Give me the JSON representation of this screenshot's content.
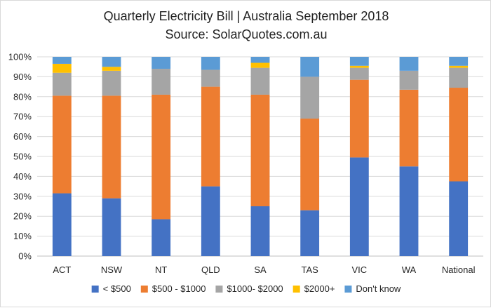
{
  "chart_data": {
    "type": "bar",
    "stacked": true,
    "title": "Quarterly  Electricity Bill | Australia September 2018",
    "subtitle": "Source: SolarQuotes.com.au",
    "xlabel": "",
    "ylabel": "",
    "ylim": [
      0,
      100
    ],
    "y_ticks": [
      "0%",
      "10%",
      "20%",
      "30%",
      "40%",
      "50%",
      "60%",
      "70%",
      "80%",
      "90%",
      "100%"
    ],
    "grid": true,
    "legend_position": "bottom",
    "categories": [
      "ACT",
      "NSW",
      "NT",
      "QLD",
      "SA",
      "TAS",
      "VIC",
      "WA",
      "National"
    ],
    "series": [
      {
        "name": "< $500",
        "color": "#4472C4",
        "values": [
          31.5,
          29,
          18.5,
          35,
          25,
          23,
          49.5,
          45,
          37.5
        ]
      },
      {
        "name": "$500 - $1000",
        "color": "#ED7D31",
        "values": [
          49,
          51.5,
          62.5,
          50,
          56,
          46,
          39,
          38.5,
          47
        ]
      },
      {
        "name": "$1000- $2000",
        "color": "#A5A5A5",
        "values": [
          11.5,
          12.5,
          13,
          8.5,
          13.5,
          21,
          6,
          9.5,
          10
        ]
      },
      {
        "name": "$2000+",
        "color": "#FFC000",
        "values": [
          4.5,
          2,
          0,
          0,
          2.5,
          0,
          1,
          0,
          1
        ]
      },
      {
        "name": "Don't know",
        "color": "#5B9BD5",
        "values": [
          3.5,
          5,
          6,
          6.5,
          3,
          10,
          4.5,
          7,
          4.5
        ]
      }
    ]
  }
}
